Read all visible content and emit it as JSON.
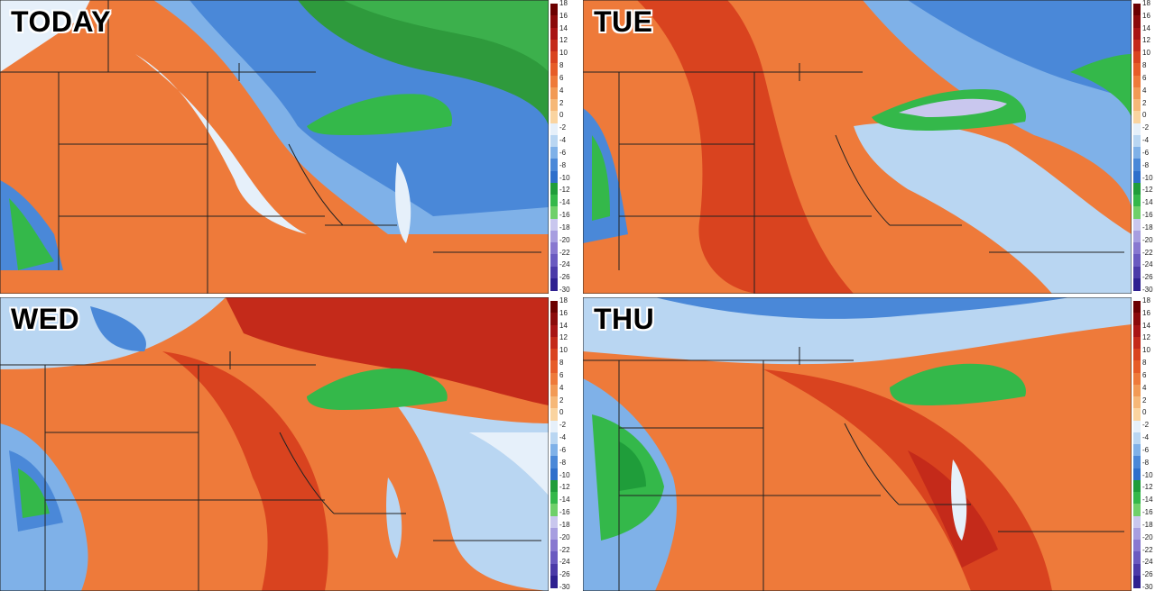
{
  "panels": [
    {
      "label": "TODAY"
    },
    {
      "label": "TUE"
    },
    {
      "label": "WED"
    },
    {
      "label": "THU"
    }
  ],
  "legend": {
    "ticks": [
      "18",
      "16",
      "14",
      "12",
      "10",
      "8",
      "6",
      "4",
      "2",
      "0",
      "-2",
      "-4",
      "-6",
      "-8",
      "-10",
      "-12",
      "-14",
      "-16",
      "-18",
      "-20",
      "-22",
      "-24",
      "-26",
      "-30"
    ],
    "colors": [
      "#6b0000",
      "#8b0a0a",
      "#a81414",
      "#c42a1a",
      "#d9431f",
      "#e65c28",
      "#ee7a3a",
      "#f29a55",
      "#f6b878",
      "#fad4a0",
      "#e6f0fa",
      "#b9d6f2",
      "#7fb1e8",
      "#4a88d8",
      "#2e6fcb",
      "#1f9d3a",
      "#34b84a",
      "#6fd06a",
      "#c9c7ee",
      "#a79ee0",
      "#8878d0",
      "#6a5ac0",
      "#4b3aa8",
      "#2e2090"
    ]
  }
}
